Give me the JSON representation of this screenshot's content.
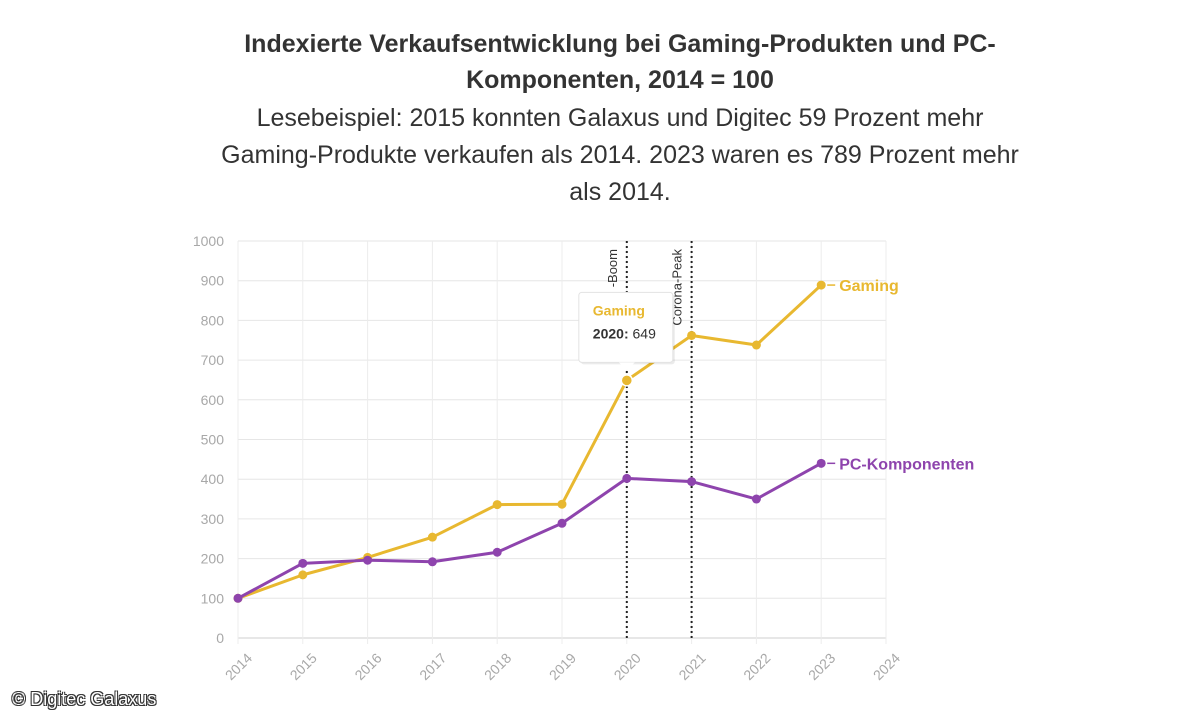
{
  "credit": "© Digitec Galaxus",
  "chart_data": {
    "type": "line",
    "title": "Indexierte Verkaufsentwicklung bei Gaming-Produkten und PC-Komponenten, 2014 = 100",
    "subtitle": "Lesebeispiel: 2015 konnten Galaxus und Digitec 59 Prozent mehr Gaming-Produkte verkaufen als 2014. 2023 waren es 789 Prozent mehr als 2014.",
    "xlabel": "",
    "ylabel": "",
    "x_ticks": [
      "2014",
      "2015",
      "2016",
      "2017",
      "2018",
      "2019",
      "2020",
      "2021",
      "2022",
      "2023",
      "2024"
    ],
    "y_ticks": [
      0,
      100,
      200,
      300,
      400,
      500,
      600,
      700,
      800,
      900,
      1000
    ],
    "ylim": [
      0,
      1000
    ],
    "xlim": [
      2014,
      2024
    ],
    "grid": true,
    "legend": "inline labels at line ends",
    "series": [
      {
        "name": "Gaming",
        "color": "#e8b830",
        "x": [
          2014,
          2015,
          2016,
          2017,
          2018,
          2019,
          2020,
          2021,
          2022,
          2023
        ],
        "values": [
          100,
          159,
          203,
          254,
          336,
          337,
          649,
          762,
          738,
          889
        ]
      },
      {
        "name": "PC-Komponenten",
        "color": "#8e44ad",
        "x": [
          2014,
          2015,
          2016,
          2017,
          2018,
          2019,
          2020,
          2021,
          2022,
          2023
        ],
        "values": [
          100,
          188,
          196,
          192,
          216,
          289,
          402,
          394,
          350,
          440
        ]
      }
    ],
    "annotations": [
      {
        "x": 2020,
        "label": "-Boom"
      },
      {
        "x": 2021,
        "label": "Corona-Peak"
      }
    ],
    "tooltip": {
      "series": "Gaming",
      "x_label": "2020:",
      "value_label": "649"
    }
  }
}
